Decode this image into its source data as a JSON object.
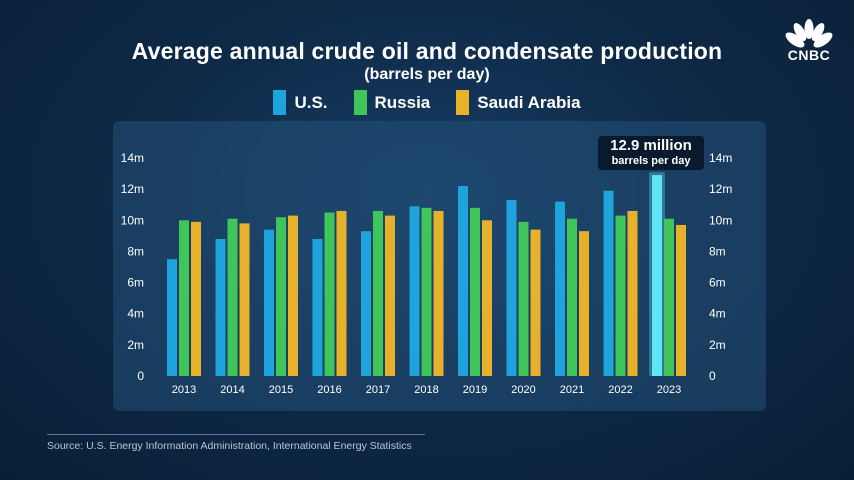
{
  "header": {
    "title": "Average annual crude oil and condensate production",
    "subtitle": "(barrels per day)"
  },
  "brand": {
    "name": "CNBC"
  },
  "callout": {
    "value": "12.9 million",
    "unit": "barrels per day"
  },
  "source": "Source: U.S. Energy Information Administration, International Energy Statistics",
  "colors": {
    "us": "#1fa3dd",
    "russia": "#3fc55a",
    "saudi": "#e8b12b",
    "us_highlight": "#5fe6f5"
  },
  "chart_data": {
    "type": "bar",
    "title": "Average annual crude oil and condensate production",
    "subtitle": "(barrels per day)",
    "categories": [
      "2013",
      "2014",
      "2015",
      "2016",
      "2017",
      "2018",
      "2019",
      "2020",
      "2021",
      "2022",
      "2023"
    ],
    "series": [
      {
        "name": "U.S.",
        "values": [
          7.5,
          8.8,
          9.4,
          8.8,
          9.3,
          10.9,
          12.2,
          11.3,
          11.2,
          11.9,
          12.9
        ]
      },
      {
        "name": "Russia",
        "values": [
          10.0,
          10.1,
          10.2,
          10.5,
          10.6,
          10.8,
          10.8,
          9.9,
          10.1,
          10.3,
          10.1
        ]
      },
      {
        "name": "Saudi Arabia",
        "values": [
          9.9,
          9.8,
          10.3,
          10.6,
          10.3,
          10.6,
          10.0,
          9.4,
          9.3,
          10.6,
          9.7
        ]
      }
    ],
    "yticks": [
      "0",
      "2m",
      "4m",
      "6m",
      "8m",
      "10m",
      "12m",
      "14m"
    ],
    "ylim": [
      0,
      14
    ],
    "grid": false,
    "legend": "top-center",
    "highlight": {
      "category": "2023",
      "series": "U.S."
    }
  }
}
